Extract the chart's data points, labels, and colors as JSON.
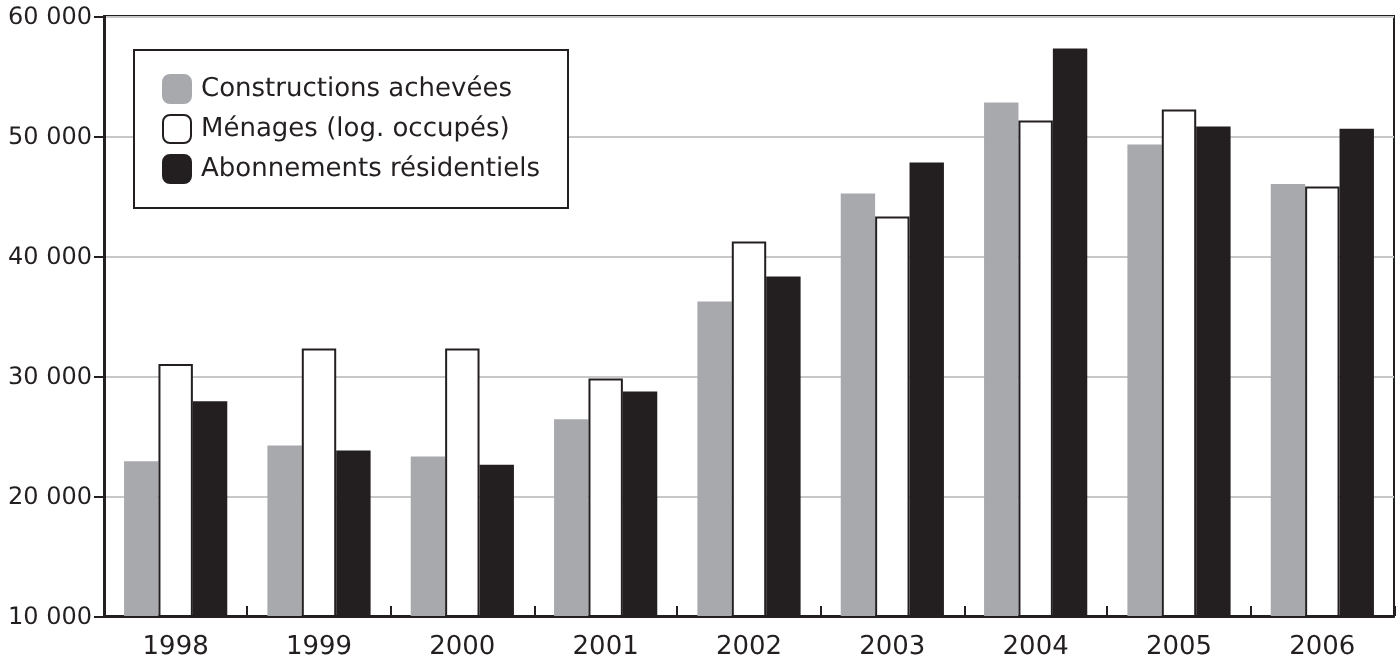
{
  "chart_data": {
    "type": "bar",
    "categories": [
      "1998",
      "1999",
      "2000",
      "2001",
      "2002",
      "2003",
      "2004",
      "2005",
      "2006"
    ],
    "series": [
      {
        "name": "Constructions achevées",
        "color": "#a7a9ac",
        "values": [
          22900,
          24200,
          23300,
          26400,
          36200,
          45200,
          52800,
          49300,
          46000
        ]
      },
      {
        "name": "Ménages (log. occupés)",
        "color": "#ffffff",
        "values": [
          31000,
          32300,
          32300,
          29800,
          41200,
          43300,
          51300,
          52200,
          45800
        ]
      },
      {
        "name": "Abonnements résidentiels",
        "color": "#231f20",
        "values": [
          27900,
          23800,
          22600,
          28700,
          38300,
          47800,
          57300,
          50800,
          50600
        ]
      }
    ],
    "ylim": [
      10000,
      60000
    ],
    "yticks": [
      {
        "value": 10000,
        "label": "10 000"
      },
      {
        "value": 20000,
        "label": "20 000"
      },
      {
        "value": 30000,
        "label": "30 000"
      },
      {
        "value": 40000,
        "label": "40 000"
      },
      {
        "value": 50000,
        "label": "50 000"
      },
      {
        "value": 60000,
        "label": "60 000"
      }
    ],
    "grid": "y",
    "legend": "top left"
  }
}
